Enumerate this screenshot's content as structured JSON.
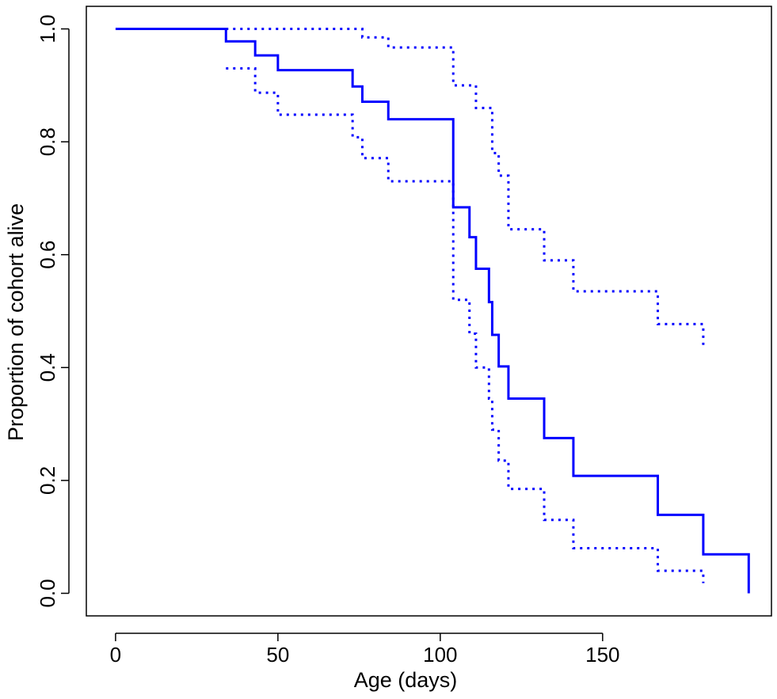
{
  "chart_data": {
    "type": "line",
    "title": "",
    "xlabel": "Age (days)",
    "ylabel": "Proportion of cohort alive",
    "xlim": [
      -9,
      202
    ],
    "ylim": [
      -0.04,
      1.04
    ],
    "x_ticks": [
      0,
      50,
      100,
      150
    ],
    "x_tick_labels": [
      "0",
      "50",
      "100",
      "150"
    ],
    "y_ticks": [
      0.0,
      0.2,
      0.4,
      0.6,
      0.8,
      1.0
    ],
    "y_tick_labels": [
      "0.0",
      "0.2",
      "0.4",
      "0.6",
      "0.8",
      "1.0"
    ],
    "grid": false,
    "legend": "none",
    "color": "#0000ff",
    "series": [
      {
        "style": "solid",
        "step": true,
        "x": [
          0,
          34,
          43,
          50,
          73,
          76,
          84,
          104,
          109,
          111,
          115,
          116,
          118,
          121,
          132,
          141,
          167,
          181,
          195,
          195
        ],
        "y": [
          1.0,
          0.978,
          0.953,
          0.927,
          0.898,
          0.871,
          0.84,
          0.684,
          0.631,
          0.575,
          0.516,
          0.458,
          0.402,
          0.345,
          0.275,
          0.208,
          0.139,
          0.069,
          0.069,
          0.0
        ]
      },
      {
        "style": "dotted",
        "step": true,
        "x": [
          34,
          76,
          84,
          104,
          111,
          116,
          118,
          121,
          132,
          141,
          167,
          181,
          181
        ],
        "y": [
          1.0,
          0.985,
          0.967,
          0.9,
          0.86,
          0.78,
          0.74,
          0.645,
          0.59,
          0.535,
          0.477,
          0.477,
          0.44
        ]
      },
      {
        "style": "dotted",
        "step": true,
        "x": [
          34,
          43,
          50,
          73,
          76,
          84,
          104,
          109,
          111,
          115,
          116,
          118,
          121,
          132,
          141,
          167,
          181,
          181
        ],
        "y": [
          0.93,
          0.887,
          0.848,
          0.808,
          0.771,
          0.73,
          0.52,
          0.46,
          0.4,
          0.345,
          0.29,
          0.235,
          0.185,
          0.13,
          0.08,
          0.04,
          0.04,
          0.018
        ]
      }
    ]
  }
}
